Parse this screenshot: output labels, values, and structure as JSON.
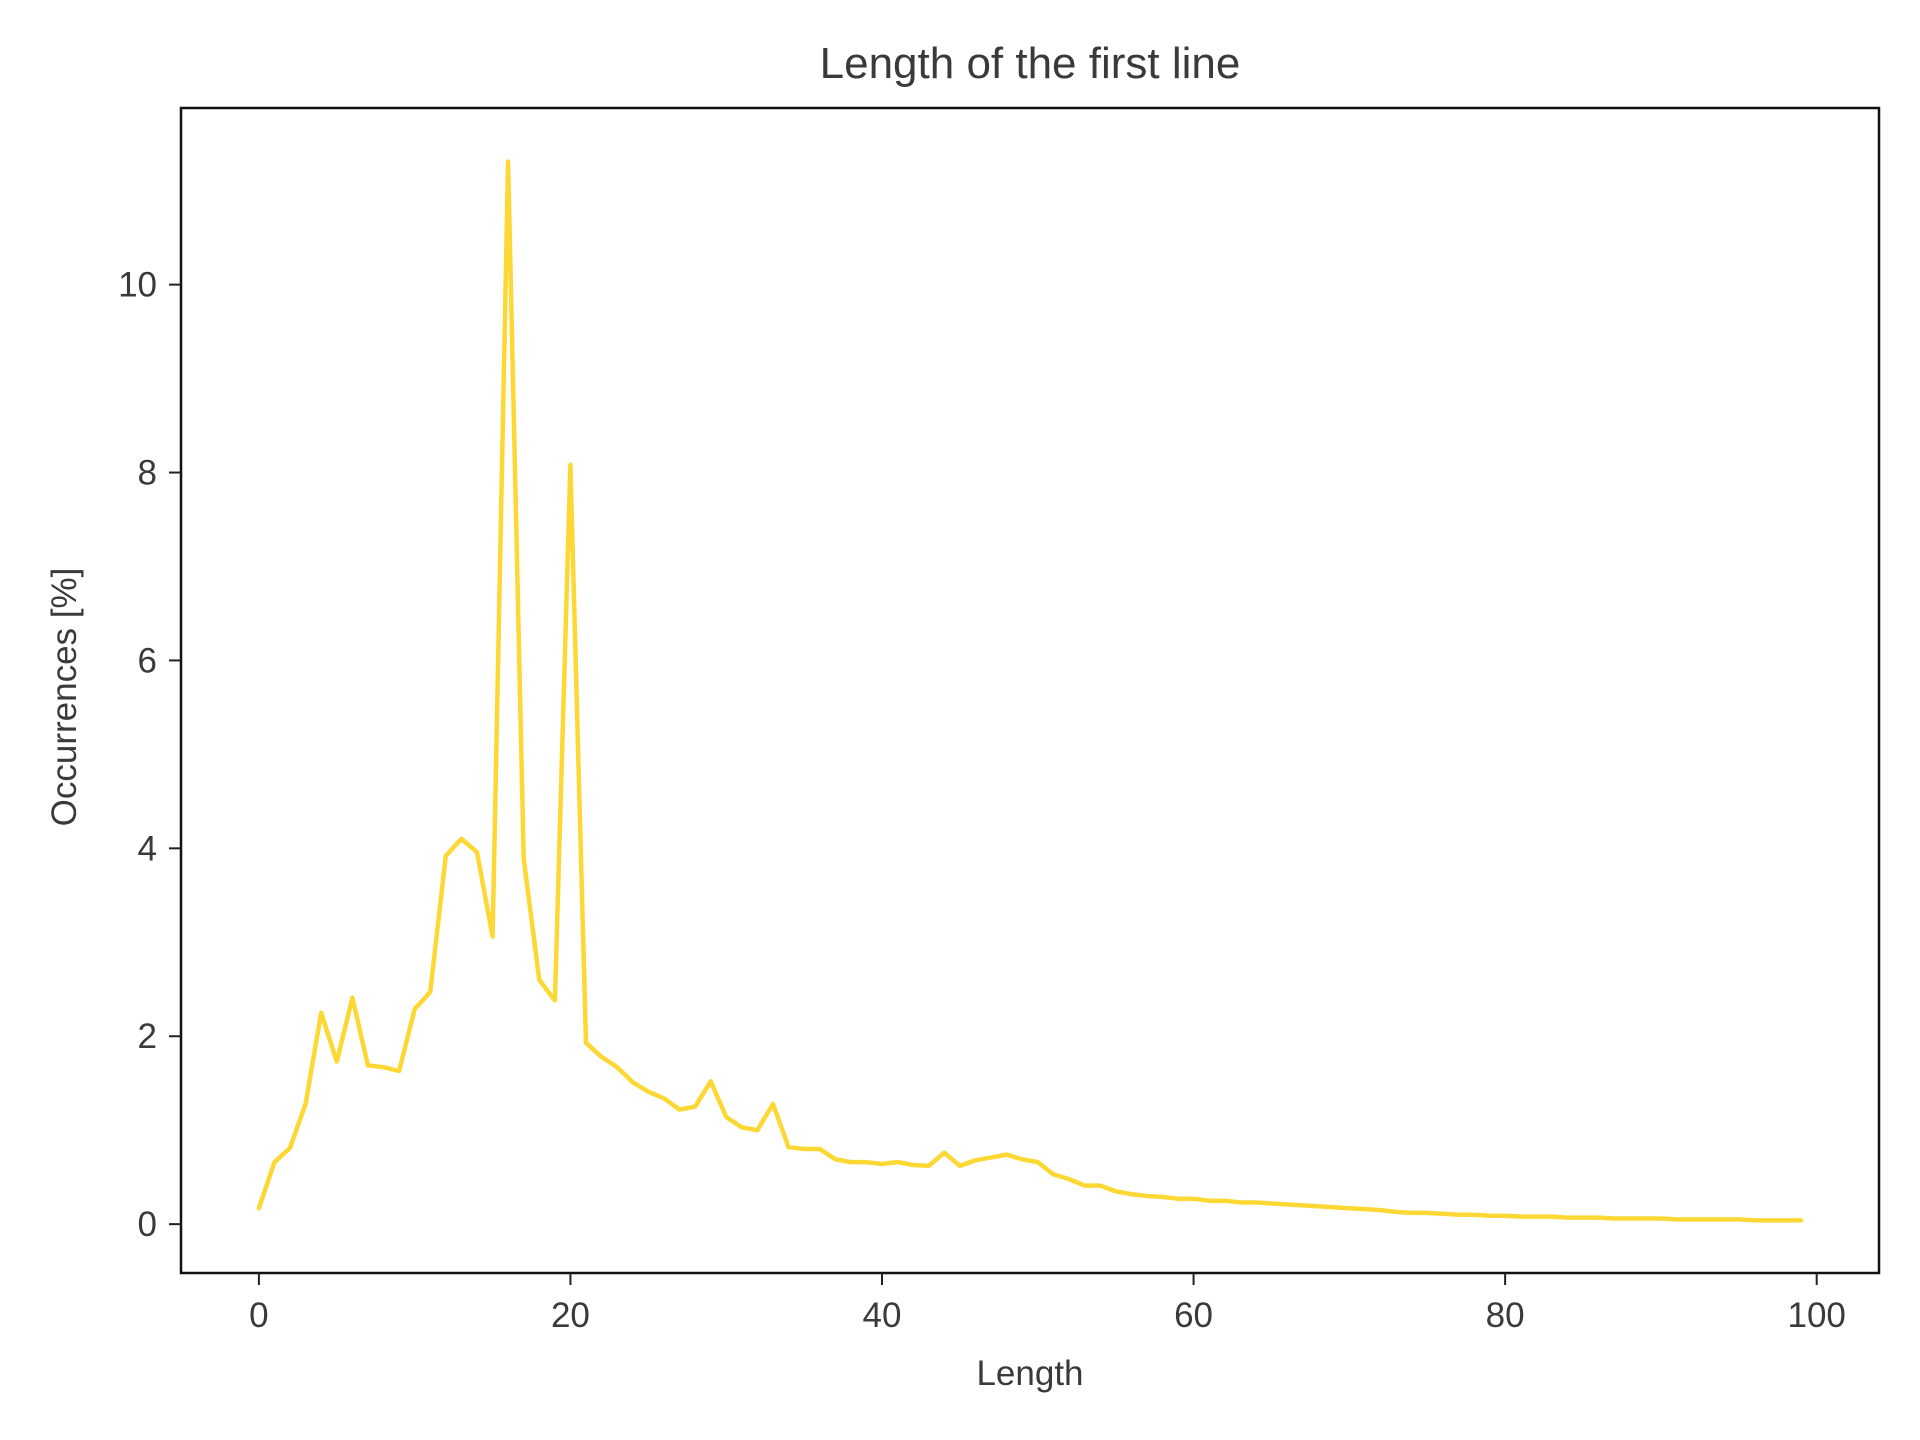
{
  "chart_data": {
    "type": "line",
    "title": "Length of the first line",
    "xlabel": "Length",
    "ylabel": "Occurrences [%]",
    "xlim": [
      -5,
      104
    ],
    "ylim": [
      -0.52,
      11.88
    ],
    "xticks": [
      0,
      20,
      40,
      60,
      80,
      100
    ],
    "yticks": [
      0,
      2,
      4,
      6,
      8,
      10
    ],
    "grid": false,
    "legend": "none",
    "line_color": "#FDD835",
    "series": [
      {
        "x": [
          0,
          1,
          2,
          3,
          4,
          5,
          6,
          7,
          8,
          9,
          10,
          11,
          12,
          13,
          14,
          15,
          16,
          17,
          18,
          19,
          20,
          21,
          22,
          23,
          24,
          25,
          26,
          27,
          28,
          29,
          30,
          31,
          32,
          33,
          34,
          35,
          36,
          37,
          38,
          39,
          40,
          41,
          42,
          43,
          44,
          45,
          46,
          47,
          48,
          49,
          50,
          51,
          52,
          53,
          54,
          55,
          56,
          57,
          58,
          59,
          60,
          61,
          62,
          63,
          64,
          65,
          66,
          67,
          68,
          69,
          70,
          71,
          72,
          73,
          74,
          75,
          76,
          77,
          78,
          79,
          80,
          81,
          82,
          83,
          84,
          85,
          86,
          87,
          88,
          89,
          90,
          91,
          92,
          93,
          94,
          95,
          96,
          97,
          98,
          99
        ],
        "values": [
          0.17,
          0.66,
          0.81,
          1.28,
          2.25,
          1.73,
          2.41,
          1.69,
          1.67,
          1.63,
          2.29,
          2.47,
          3.92,
          4.1,
          3.96,
          3.06,
          11.31,
          3.89,
          2.6,
          2.38,
          8.08,
          1.93,
          1.78,
          1.67,
          1.51,
          1.41,
          1.34,
          1.22,
          1.25,
          1.52,
          1.14,
          1.03,
          1.0,
          1.28,
          0.82,
          0.8,
          0.8,
          0.69,
          0.66,
          0.66,
          0.64,
          0.66,
          0.63,
          0.62,
          0.76,
          0.62,
          0.68,
          0.71,
          0.74,
          0.69,
          0.66,
          0.53,
          0.48,
          0.41,
          0.41,
          0.35,
          0.32,
          0.3,
          0.29,
          0.27,
          0.27,
          0.25,
          0.25,
          0.23,
          0.23,
          0.22,
          0.21,
          0.2,
          0.19,
          0.18,
          0.17,
          0.16,
          0.15,
          0.13,
          0.12,
          0.12,
          0.11,
          0.1,
          0.1,
          0.09,
          0.09,
          0.08,
          0.08,
          0.08,
          0.07,
          0.07,
          0.07,
          0.06,
          0.06,
          0.06,
          0.06,
          0.05,
          0.05,
          0.05,
          0.05,
          0.05,
          0.04,
          0.04,
          0.04,
          0.04
        ]
      }
    ]
  }
}
